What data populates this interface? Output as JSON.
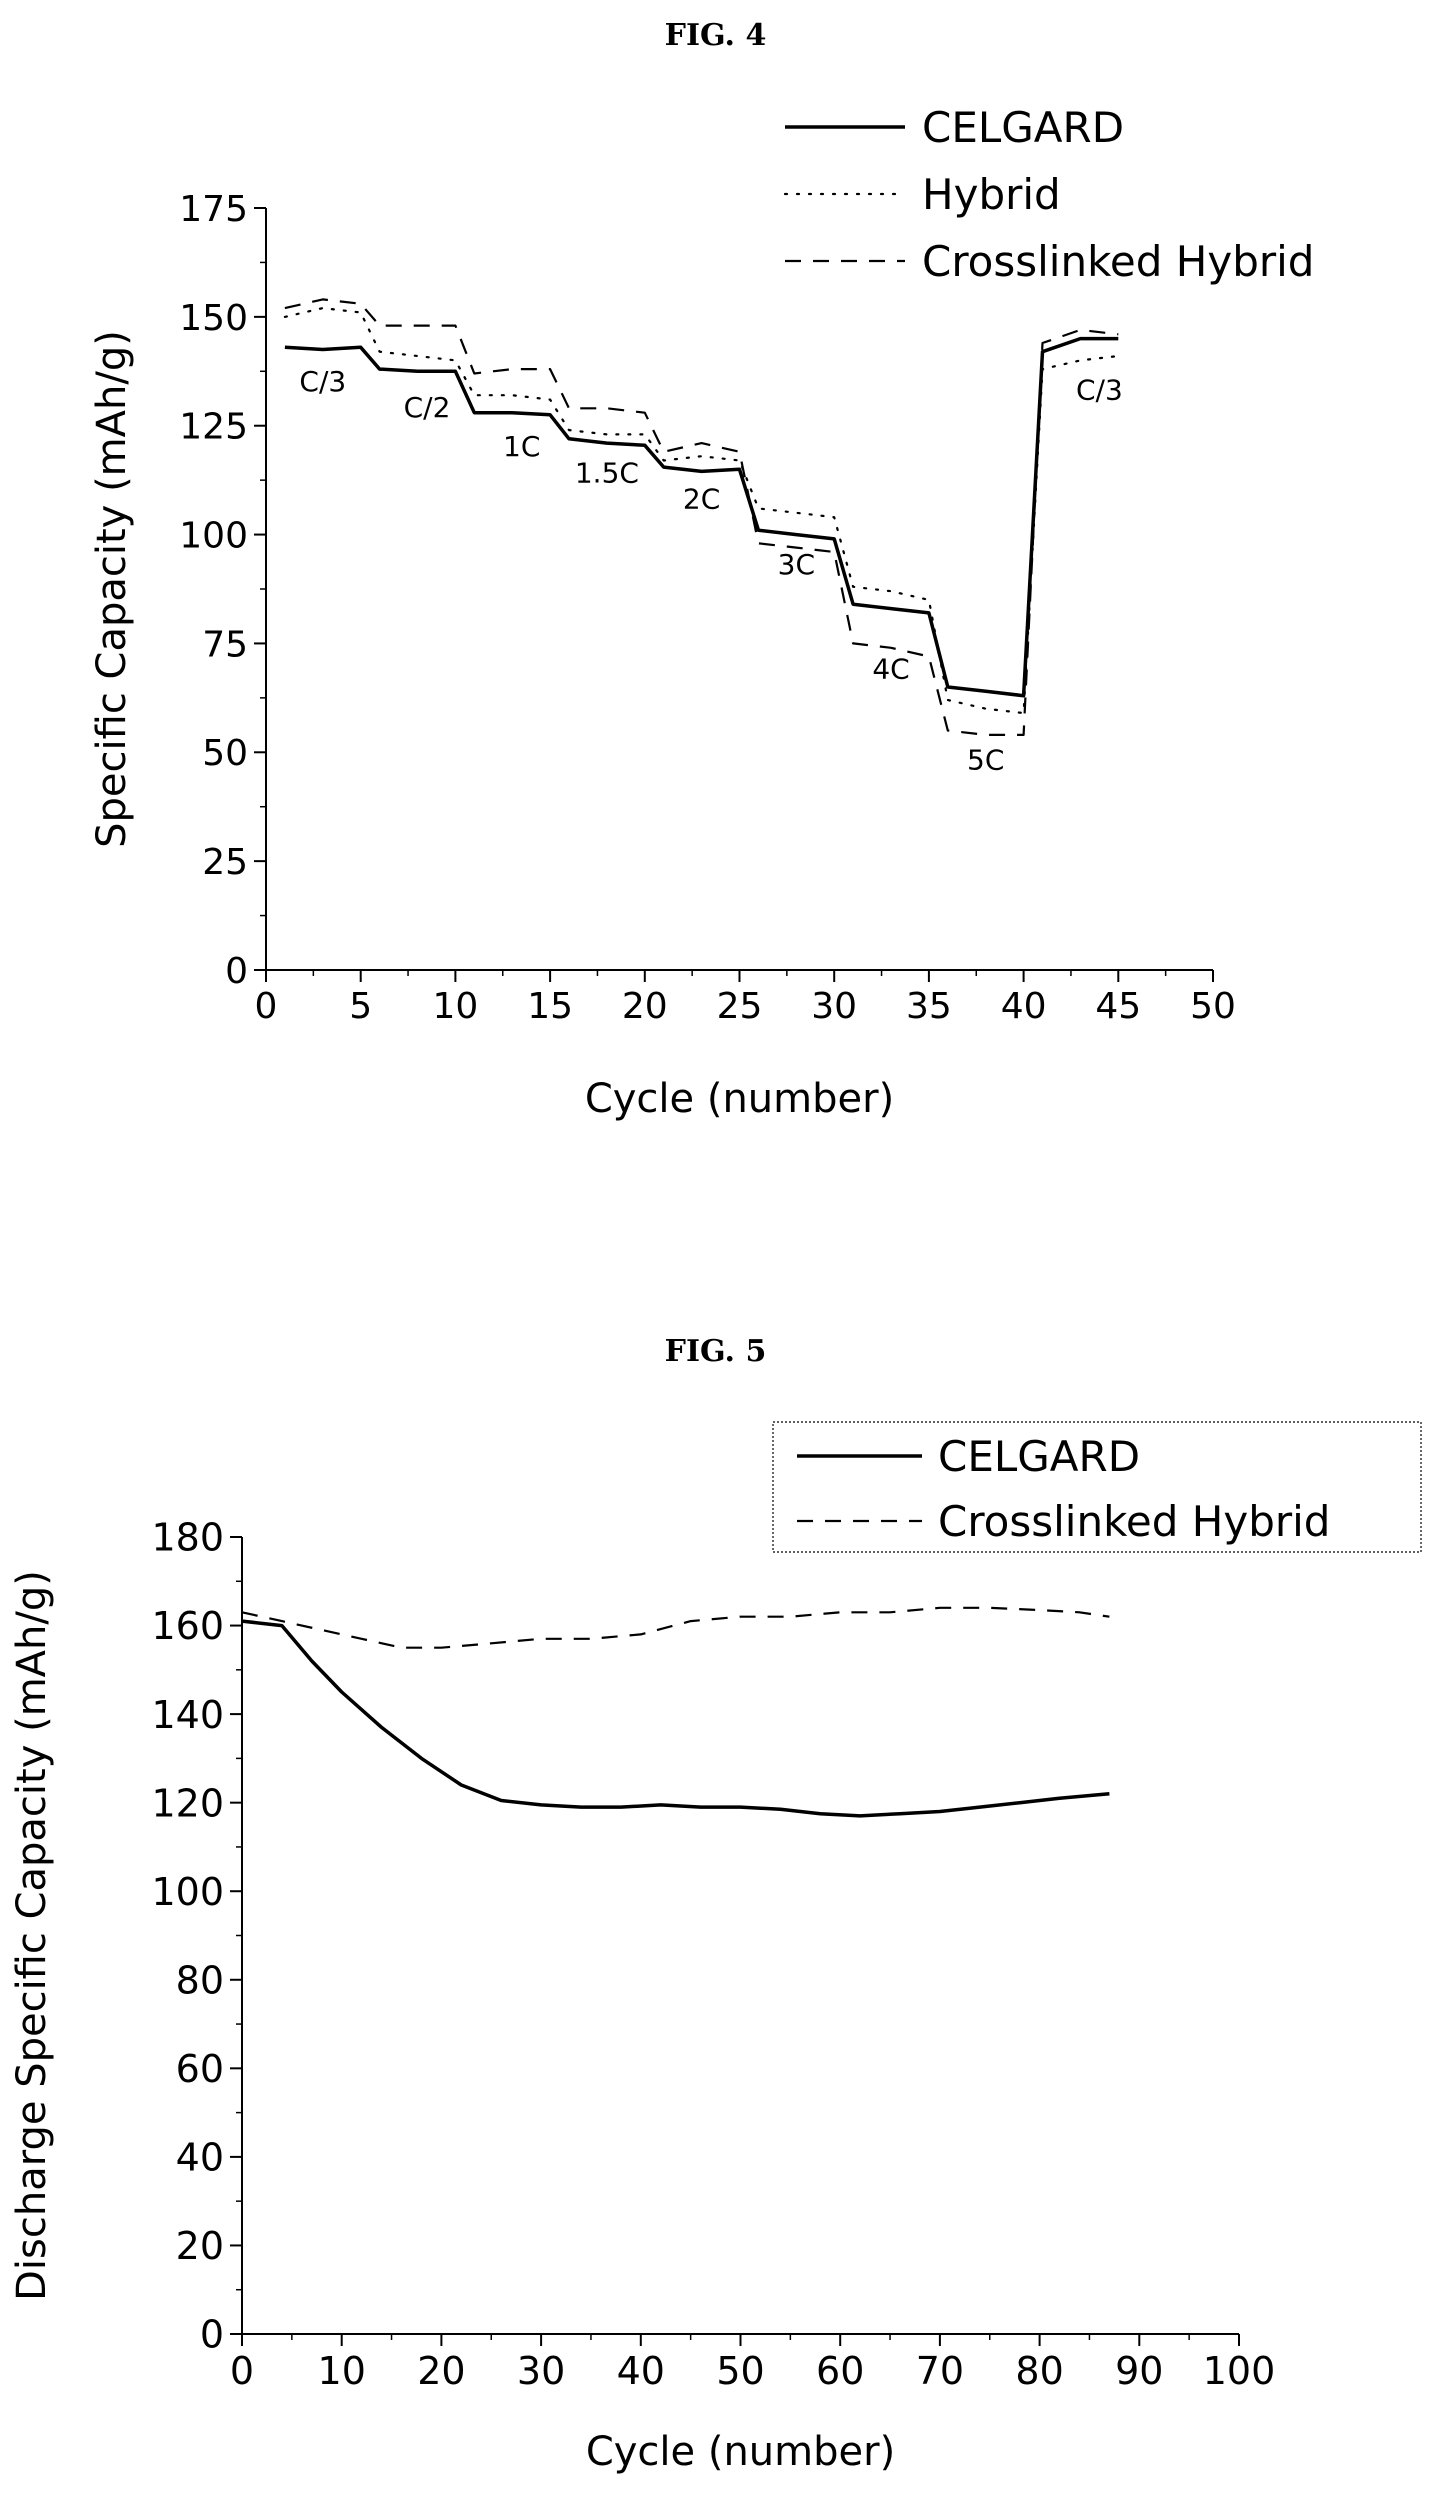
{
  "figures": {
    "fig4_title": "FIG. 4",
    "fig5_title": "FIG. 5"
  },
  "chart_data": [
    {
      "type": "line",
      "title": "FIG. 4",
      "xlabel": "Cycle (number)",
      "ylabel": "Specific Capacity (mAh/g)",
      "xlim": [
        0,
        50
      ],
      "ylim": [
        0,
        175
      ],
      "xticks": [
        0,
        5,
        10,
        15,
        20,
        25,
        30,
        35,
        40,
        45,
        50
      ],
      "yticks": [
        0,
        25,
        50,
        75,
        100,
        125,
        150,
        175
      ],
      "legend_placement": "top-right",
      "grid": false,
      "series": [
        {
          "name": "CELGARD",
          "style": "solid",
          "points": [
            [
              1,
              143
            ],
            [
              3,
              142.5
            ],
            [
              5,
              143
            ],
            [
              6,
              138
            ],
            [
              8,
              137.5
            ],
            [
              10,
              137.5
            ],
            [
              11,
              128
            ],
            [
              13,
              128
            ],
            [
              15,
              127.5
            ],
            [
              16,
              122
            ],
            [
              18,
              121
            ],
            [
              20,
              120.5
            ],
            [
              21,
              115.5
            ],
            [
              23,
              114.5
            ],
            [
              25,
              115
            ],
            [
              26,
              101
            ],
            [
              28,
              100
            ],
            [
              30,
              99
            ],
            [
              31,
              84
            ],
            [
              33,
              83
            ],
            [
              35,
              82
            ],
            [
              36,
              65
            ],
            [
              38,
              64
            ],
            [
              40,
              63
            ],
            [
              41,
              142
            ],
            [
              43,
              145
            ],
            [
              45,
              145
            ]
          ]
        },
        {
          "name": "Hybrid",
          "style": "dotted",
          "points": [
            [
              1,
              150
            ],
            [
              3,
              152
            ],
            [
              5,
              151
            ],
            [
              6,
              142
            ],
            [
              8,
              141
            ],
            [
              10,
              140
            ],
            [
              11,
              132
            ],
            [
              13,
              132
            ],
            [
              15,
              131
            ],
            [
              16,
              124
            ],
            [
              18,
              123
            ],
            [
              20,
              123
            ],
            [
              21,
              117
            ],
            [
              23,
              118
            ],
            [
              25,
              117
            ],
            [
              26,
              106
            ],
            [
              28,
              105
            ],
            [
              30,
              104
            ],
            [
              31,
              88
            ],
            [
              33,
              87
            ],
            [
              35,
              85
            ],
            [
              36,
              62
            ],
            [
              38,
              60
            ],
            [
              40,
              59
            ],
            [
              41,
              138
            ],
            [
              43,
              140
            ],
            [
              45,
              141
            ]
          ]
        },
        {
          "name": "Crosslinked Hybrid",
          "style": "dashed",
          "points": [
            [
              1,
              152
            ],
            [
              3,
              154
            ],
            [
              5,
              153
            ],
            [
              6,
              148
            ],
            [
              8,
              148
            ],
            [
              10,
              148
            ],
            [
              11,
              137
            ],
            [
              13,
              138
            ],
            [
              15,
              138
            ],
            [
              16,
              129
            ],
            [
              18,
              129
            ],
            [
              20,
              128
            ],
            [
              21,
              119
            ],
            [
              23,
              121
            ],
            [
              25,
              119
            ],
            [
              26,
              98
            ],
            [
              28,
              97
            ],
            [
              30,
              96
            ],
            [
              31,
              75
            ],
            [
              33,
              74
            ],
            [
              35,
              72
            ],
            [
              36,
              55
            ],
            [
              38,
              54
            ],
            [
              40,
              54
            ],
            [
              41,
              144
            ],
            [
              43,
              147
            ],
            [
              45,
              146
            ]
          ]
        }
      ],
      "annotations": [
        {
          "text": "C/3",
          "x": 3,
          "y": 133
        },
        {
          "text": "C/2",
          "x": 8.5,
          "y": 127
        },
        {
          "text": "1C",
          "x": 13.5,
          "y": 118
        },
        {
          "text": "1.5C",
          "x": 18,
          "y": 112
        },
        {
          "text": "2C",
          "x": 23,
          "y": 106
        },
        {
          "text": "3C",
          "x": 28,
          "y": 91
        },
        {
          "text": "4C",
          "x": 33,
          "y": 67
        },
        {
          "text": "5C",
          "x": 38,
          "y": 46
        },
        {
          "text": "C/3",
          "x": 44,
          "y": 131
        }
      ]
    },
    {
      "type": "line",
      "title": "FIG. 5",
      "xlabel": "Cycle (number)",
      "ylabel": "Discharge Specific Capacity (mAh/g)",
      "xlim": [
        0,
        100
      ],
      "ylim": [
        0,
        180
      ],
      "xticks": [
        0,
        10,
        20,
        30,
        40,
        50,
        60,
        70,
        80,
        90,
        100
      ],
      "yticks": [
        0,
        20,
        40,
        60,
        80,
        100,
        120,
        140,
        160,
        180
      ],
      "legend_placement": "top-right",
      "grid": false,
      "series": [
        {
          "name": "CELGARD",
          "style": "solid",
          "points": [
            [
              0,
              161
            ],
            [
              4,
              160
            ],
            [
              7,
              152
            ],
            [
              10,
              145
            ],
            [
              14,
              137
            ],
            [
              18,
              130
            ],
            [
              22,
              124
            ],
            [
              26,
              120.5
            ],
            [
              30,
              119.5
            ],
            [
              34,
              119
            ],
            [
              38,
              119
            ],
            [
              42,
              119.5
            ],
            [
              46,
              119
            ],
            [
              50,
              119
            ],
            [
              54,
              118.5
            ],
            [
              58,
              117.5
            ],
            [
              62,
              117
            ],
            [
              66,
              117.5
            ],
            [
              70,
              118
            ],
            [
              74,
              119
            ],
            [
              78,
              120
            ],
            [
              82,
              121
            ],
            [
              87,
              122
            ]
          ]
        },
        {
          "name": "Crosslinked Hybrid",
          "style": "dashed",
          "points": [
            [
              0,
              163
            ],
            [
              4,
              161
            ],
            [
              8,
              159
            ],
            [
              12,
              157
            ],
            [
              16,
              155
            ],
            [
              20,
              155
            ],
            [
              25,
              156
            ],
            [
              30,
              157
            ],
            [
              35,
              157
            ],
            [
              40,
              158
            ],
            [
              45,
              161
            ],
            [
              50,
              162
            ],
            [
              55,
              162
            ],
            [
              60,
              163
            ],
            [
              65,
              163
            ],
            [
              70,
              164
            ],
            [
              75,
              164
            ],
            [
              80,
              163.5
            ],
            [
              84,
              163
            ],
            [
              87,
              162
            ]
          ]
        }
      ]
    }
  ]
}
